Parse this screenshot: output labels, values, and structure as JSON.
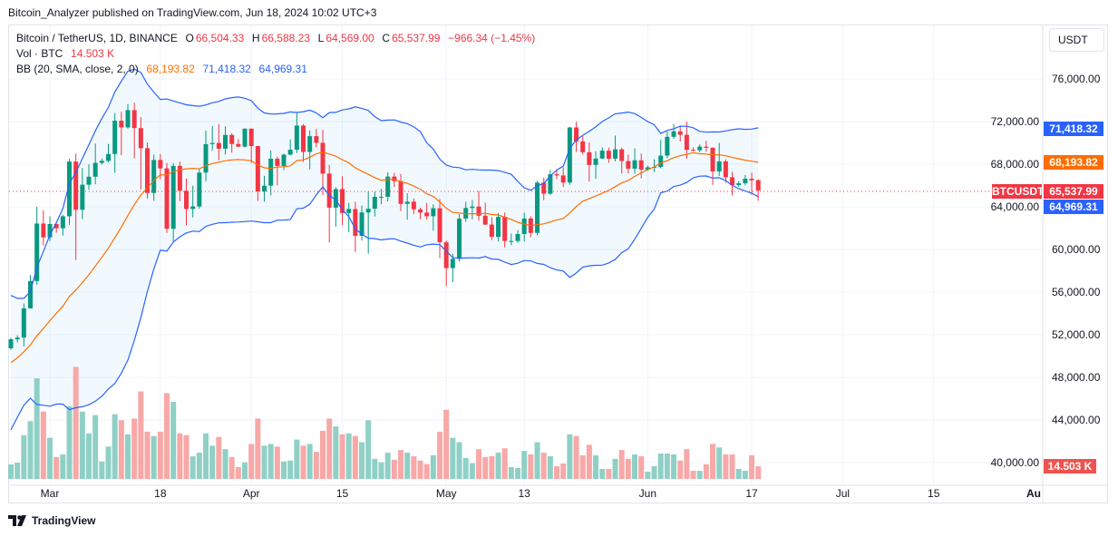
{
  "published": "Bitcoin_Analyzer published on TradingView.com, Jun 18, 2024 10:02 UTC+3",
  "legend": {
    "symbol": "Bitcoin / TetherUS, 1D, BINANCE",
    "o_label": "O",
    "o": "66,504.33",
    "h_label": "H",
    "h": "66,588.23",
    "l_label": "L",
    "l": "64,569.00",
    "c_label": "C",
    "c": "65,537.99",
    "change": "−966.34 (−1.45%)",
    "vol_label": "Vol · BTC",
    "vol": "14.503 K",
    "bb_label": "BB (20, SMA, close, 2, 0)",
    "bb_basis": "68,193.82",
    "bb_upper": "71,418.32",
    "bb_lower": "64,969.31"
  },
  "currency_button": "USDT",
  "badges": {
    "symbol": "BTCUSDT",
    "last": "65,537.99",
    "upper": "71,418.32",
    "basis": "68,193.82",
    "lower": "64,969.31",
    "volume": "14.503 K"
  },
  "branding": "TradingView",
  "colors": {
    "up": "#089981",
    "down": "#f23645",
    "bb_band": "#2962ff",
    "bb_basis": "#ff6d00",
    "volume_up": "#8fd0c6",
    "volume_down": "#f7a8a7"
  },
  "chart_data": {
    "type": "candlestick",
    "title": "Bitcoin / TetherUS, 1D, BINANCE",
    "ylim": [
      38000,
      80000
    ],
    "grid": true,
    "y_ticks": [
      "76,000.00",
      "72,000.00",
      "68,000.00",
      "64,000.00",
      "60,000.00",
      "56,000.00",
      "52,000.00",
      "48,000.00",
      "44,000.00",
      "40,000.00"
    ],
    "y_tick_values": [
      76000,
      72000,
      68000,
      64000,
      60000,
      56000,
      52000,
      48000,
      44000,
      40000
    ],
    "x_ticks": [
      {
        "label": "Mar",
        "date": "2024-03-01"
      },
      {
        "label": "18",
        "date": "2024-03-18"
      },
      {
        "label": "Apr",
        "date": "2024-04-01"
      },
      {
        "label": "15",
        "date": "2024-04-15"
      },
      {
        "label": "May",
        "date": "2024-05-01"
      },
      {
        "label": "13",
        "date": "2024-05-13"
      },
      {
        "label": "Jun",
        "date": "2024-06-01"
      },
      {
        "label": "17",
        "date": "2024-06-17"
      },
      {
        "label": "Jul",
        "date": "2024-07-01"
      },
      {
        "label": "15",
        "date": "2024-07-15"
      },
      {
        "label": "Au",
        "date": "2024-08-01"
      }
    ],
    "indicators": [
      "Vol · BTC",
      "BB (20, SMA, close, 2, 0)"
    ],
    "columns": [
      "date",
      "open",
      "high",
      "low",
      "close",
      "volume_k"
    ],
    "candles": [
      [
        "2024-02-24",
        50732,
        51700,
        50580,
        51571,
        16.6
      ],
      [
        "2024-02-25",
        51571,
        51950,
        51280,
        51730,
        18.6
      ],
      [
        "2024-02-26",
        51730,
        54940,
        50900,
        54476,
        50
      ],
      [
        "2024-02-27",
        54476,
        57588,
        54450,
        57037,
        66
      ],
      [
        "2024-02-28",
        57037,
        64000,
        56690,
        62432,
        115
      ],
      [
        "2024-02-29",
        62432,
        63676,
        60364,
        61130,
        77
      ],
      [
        "2024-03-01",
        61130,
        63114,
        60777,
        62387,
        47
      ],
      [
        "2024-03-02",
        62387,
        62433,
        61561,
        61987,
        25
      ],
      [
        "2024-03-03",
        61987,
        63231,
        61320,
        63113,
        28
      ],
      [
        "2024-03-04",
        63113,
        68499,
        62300,
        68245,
        83
      ],
      [
        "2024-03-05",
        68245,
        69000,
        59005,
        63724,
        128
      ],
      [
        "2024-03-06",
        63724,
        67637,
        62849,
        66074,
        77
      ],
      [
        "2024-03-07",
        66074,
        67985,
        65603,
        66823,
        52
      ],
      [
        "2024-03-08",
        66823,
        69940,
        66113,
        68124,
        73
      ],
      [
        "2024-03-09",
        68124,
        68522,
        67961,
        68313,
        20
      ],
      [
        "2024-03-10",
        68313,
        69900,
        68155,
        68955,
        37
      ],
      [
        "2024-03-11",
        68955,
        72800,
        67195,
        72078,
        74
      ],
      [
        "2024-03-12",
        72078,
        72916,
        68845,
        71452,
        67
      ],
      [
        "2024-03-13",
        71452,
        73650,
        71334,
        73072,
        51
      ],
      [
        "2024-03-14",
        73072,
        73777,
        68555,
        71388,
        69
      ],
      [
        "2024-03-15",
        71388,
        72420,
        65630,
        69499,
        100
      ],
      [
        "2024-03-16",
        69499,
        70044,
        64780,
        65300,
        54
      ],
      [
        "2024-03-17",
        65300,
        68905,
        64570,
        68393,
        49
      ],
      [
        "2024-03-18",
        68393,
        68957,
        66587,
        67609,
        54
      ],
      [
        "2024-03-19",
        67609,
        68111,
        61555,
        61937,
        98
      ],
      [
        "2024-03-20",
        61937,
        68100,
        60775,
        67840,
        88
      ],
      [
        "2024-03-21",
        67840,
        68240,
        64529,
        65501,
        52
      ],
      [
        "2024-03-22",
        65501,
        66650,
        62261,
        63797,
        50
      ],
      [
        "2024-03-23",
        63797,
        65975,
        63000,
        64037,
        26
      ],
      [
        "2024-03-24",
        64037,
        67622,
        63825,
        67211,
        30
      ],
      [
        "2024-03-25",
        67211,
        71150,
        66385,
        69880,
        52
      ],
      [
        "2024-03-26",
        69880,
        71561,
        69280,
        69988,
        38
      ],
      [
        "2024-03-27",
        69988,
        71769,
        68360,
        69455,
        48
      ],
      [
        "2024-03-28",
        69455,
        71552,
        68903,
        70744,
        34
      ],
      [
        "2024-03-29",
        70744,
        70913,
        69076,
        69893,
        25
      ],
      [
        "2024-03-30",
        69893,
        70355,
        69601,
        69645,
        13.5
      ],
      [
        "2024-03-31",
        69645,
        71366,
        69562,
        71334,
        19
      ],
      [
        "2024-04-01",
        71334,
        71342,
        68110,
        69702,
        40
      ],
      [
        "2024-04-02",
        69702,
        69708,
        64550,
        65446,
        69
      ],
      [
        "2024-04-03",
        65446,
        66914,
        64493,
        65980,
        38
      ],
      [
        "2024-04-04",
        65980,
        69291,
        65064,
        68508,
        40
      ],
      [
        "2024-04-05",
        68508,
        68725,
        66011,
        67838,
        37
      ],
      [
        "2024-04-06",
        67838,
        69000,
        67446,
        68896,
        20
      ],
      [
        "2024-04-07",
        68896,
        70327,
        68824,
        69361,
        21
      ],
      [
        "2024-04-08",
        69361,
        72797,
        69043,
        71620,
        45
      ],
      [
        "2024-04-09",
        71620,
        71758,
        68210,
        69146,
        38
      ],
      [
        "2024-04-10",
        69146,
        71172,
        67518,
        70631,
        40
      ],
      [
        "2024-04-11",
        70631,
        71305,
        69567,
        70006,
        31
      ],
      [
        "2024-04-12",
        70006,
        71227,
        65086,
        67117,
        55
      ],
      [
        "2024-04-13",
        67117,
        67931,
        60660,
        63924,
        69
      ],
      [
        "2024-04-14",
        63924,
        65840,
        62134,
        65662,
        60
      ],
      [
        "2024-04-15",
        65662,
        66867,
        62274,
        63419,
        51
      ],
      [
        "2024-04-16",
        63419,
        64365,
        61600,
        63793,
        52
      ],
      [
        "2024-04-17",
        63793,
        64486,
        59768,
        61277,
        49
      ],
      [
        "2024-04-18",
        61277,
        64125,
        60833,
        63470,
        42
      ],
      [
        "2024-04-19",
        63470,
        65450,
        59600,
        63819,
        67
      ],
      [
        "2024-04-20",
        63819,
        65419,
        63090,
        64940,
        23
      ],
      [
        "2024-04-21",
        64940,
        65695,
        64237,
        64942,
        19
      ],
      [
        "2024-04-22",
        64942,
        67233,
        64500,
        66837,
        30
      ],
      [
        "2024-04-23",
        66837,
        67199,
        65864,
        66408,
        22
      ],
      [
        "2024-04-24",
        66408,
        67075,
        63589,
        64276,
        33
      ],
      [
        "2024-04-25",
        64276,
        65275,
        62783,
        64482,
        30
      ],
      [
        "2024-04-26",
        64482,
        64792,
        63322,
        63762,
        26
      ],
      [
        "2024-04-27",
        63762,
        63923,
        62824,
        63461,
        21
      ],
      [
        "2024-04-28",
        63461,
        64362,
        62794,
        63118,
        17
      ],
      [
        "2024-04-29",
        63118,
        64228,
        61765,
        63866,
        27
      ],
      [
        "2024-04-30",
        63866,
        64734,
        59191,
        60672,
        54
      ],
      [
        "2024-05-01",
        60672,
        60841,
        56552,
        58254,
        79
      ],
      [
        "2024-05-02",
        58254,
        59602,
        56937,
        59123,
        47
      ],
      [
        "2024-05-03",
        59123,
        63320,
        58848,
        62889,
        42
      ],
      [
        "2024-05-04",
        62889,
        64494,
        62599,
        63891,
        24
      ],
      [
        "2024-05-05",
        63891,
        64646,
        62822,
        64031,
        18
      ],
      [
        "2024-05-06",
        64031,
        65500,
        62700,
        63161,
        34
      ],
      [
        "2024-05-07",
        63161,
        64390,
        62285,
        62334,
        25
      ],
      [
        "2024-05-08",
        62334,
        63018,
        60888,
        61187,
        26
      ],
      [
        "2024-05-09",
        61187,
        63421,
        60769,
        63049,
        30
      ],
      [
        "2024-05-10",
        63049,
        63469,
        60187,
        60792,
        35
      ],
      [
        "2024-05-11",
        60792,
        61490,
        60400,
        60793,
        13.5
      ],
      [
        "2024-05-12",
        60793,
        61818,
        60632,
        61448,
        12.5
      ],
      [
        "2024-05-13",
        61448,
        63450,
        60749,
        62901,
        32
      ],
      [
        "2024-05-14",
        62901,
        63118,
        61143,
        61552,
        28
      ],
      [
        "2024-05-15",
        61552,
        66444,
        61330,
        66267,
        42
      ],
      [
        "2024-05-16",
        66267,
        66712,
        64613,
        65231,
        30
      ],
      [
        "2024-05-17",
        65231,
        67459,
        65119,
        67051,
        26
      ],
      [
        "2024-05-18",
        67051,
        67400,
        66600,
        66940,
        14.5
      ],
      [
        "2024-05-19",
        66940,
        67700,
        65857,
        66278,
        17.6
      ],
      [
        "2024-05-20",
        66278,
        71515,
        66060,
        71446,
        51
      ],
      [
        "2024-05-21",
        71446,
        71979,
        69162,
        70136,
        49
      ],
      [
        "2024-05-22",
        70136,
        70623,
        68900,
        69122,
        27
      ],
      [
        "2024-05-23",
        69122,
        70041,
        66356,
        67929,
        39
      ],
      [
        "2024-05-24",
        67929,
        69220,
        66622,
        68526,
        27
      ],
      [
        "2024-05-25",
        68526,
        69579,
        68515,
        69265,
        11.4
      ],
      [
        "2024-05-26",
        69265,
        69562,
        68128,
        68518,
        11.4
      ],
      [
        "2024-05-27",
        68518,
        70687,
        68250,
        69394,
        23
      ],
      [
        "2024-05-28",
        69394,
        69550,
        67118,
        68296,
        33
      ],
      [
        "2024-05-29",
        68296,
        68909,
        67120,
        67578,
        23
      ],
      [
        "2024-05-30",
        67578,
        69500,
        67118,
        68364,
        28
      ],
      [
        "2024-05-31",
        68364,
        69000,
        66670,
        67491,
        26
      ],
      [
        "2024-06-01",
        67491,
        67860,
        67387,
        67706,
        8.3
      ],
      [
        "2024-06-02",
        67706,
        68450,
        67257,
        67751,
        14.5
      ],
      [
        "2024-06-03",
        67751,
        70288,
        67612,
        68804,
        29
      ],
      [
        "2024-06-04",
        68804,
        71063,
        68567,
        70567,
        29
      ],
      [
        "2024-06-05",
        70567,
        71758,
        70383,
        71082,
        28
      ],
      [
        "2024-06-06",
        71082,
        71625,
        70119,
        70757,
        21
      ],
      [
        "2024-06-07",
        70757,
        71997,
        68500,
        69342,
        34
      ],
      [
        "2024-06-08",
        69342,
        69582,
        69208,
        69305,
        9.3
      ],
      [
        "2024-06-09",
        69305,
        69850,
        69125,
        69648,
        9.3
      ],
      [
        "2024-06-10",
        69648,
        70195,
        69172,
        69540,
        16.6
      ],
      [
        "2024-06-11",
        69540,
        69590,
        66051,
        67314,
        40
      ],
      [
        "2024-06-12",
        67314,
        69999,
        66902,
        68263,
        36
      ],
      [
        "2024-06-13",
        68263,
        68449,
        66251,
        66773,
        28
      ],
      [
        "2024-06-14",
        66773,
        67294,
        65056,
        66044,
        28
      ],
      [
        "2024-06-15",
        66044,
        66402,
        65871,
        66210,
        11.4
      ],
      [
        "2024-06-16",
        66210,
        66978,
        66026,
        66639,
        9.3
      ],
      [
        "2024-06-17",
        66639,
        67198,
        65130,
        66490,
        27
      ],
      [
        "2024-06-18",
        66504.33,
        66588.23,
        64569.0,
        65537.99,
        14.503
      ]
    ]
  }
}
